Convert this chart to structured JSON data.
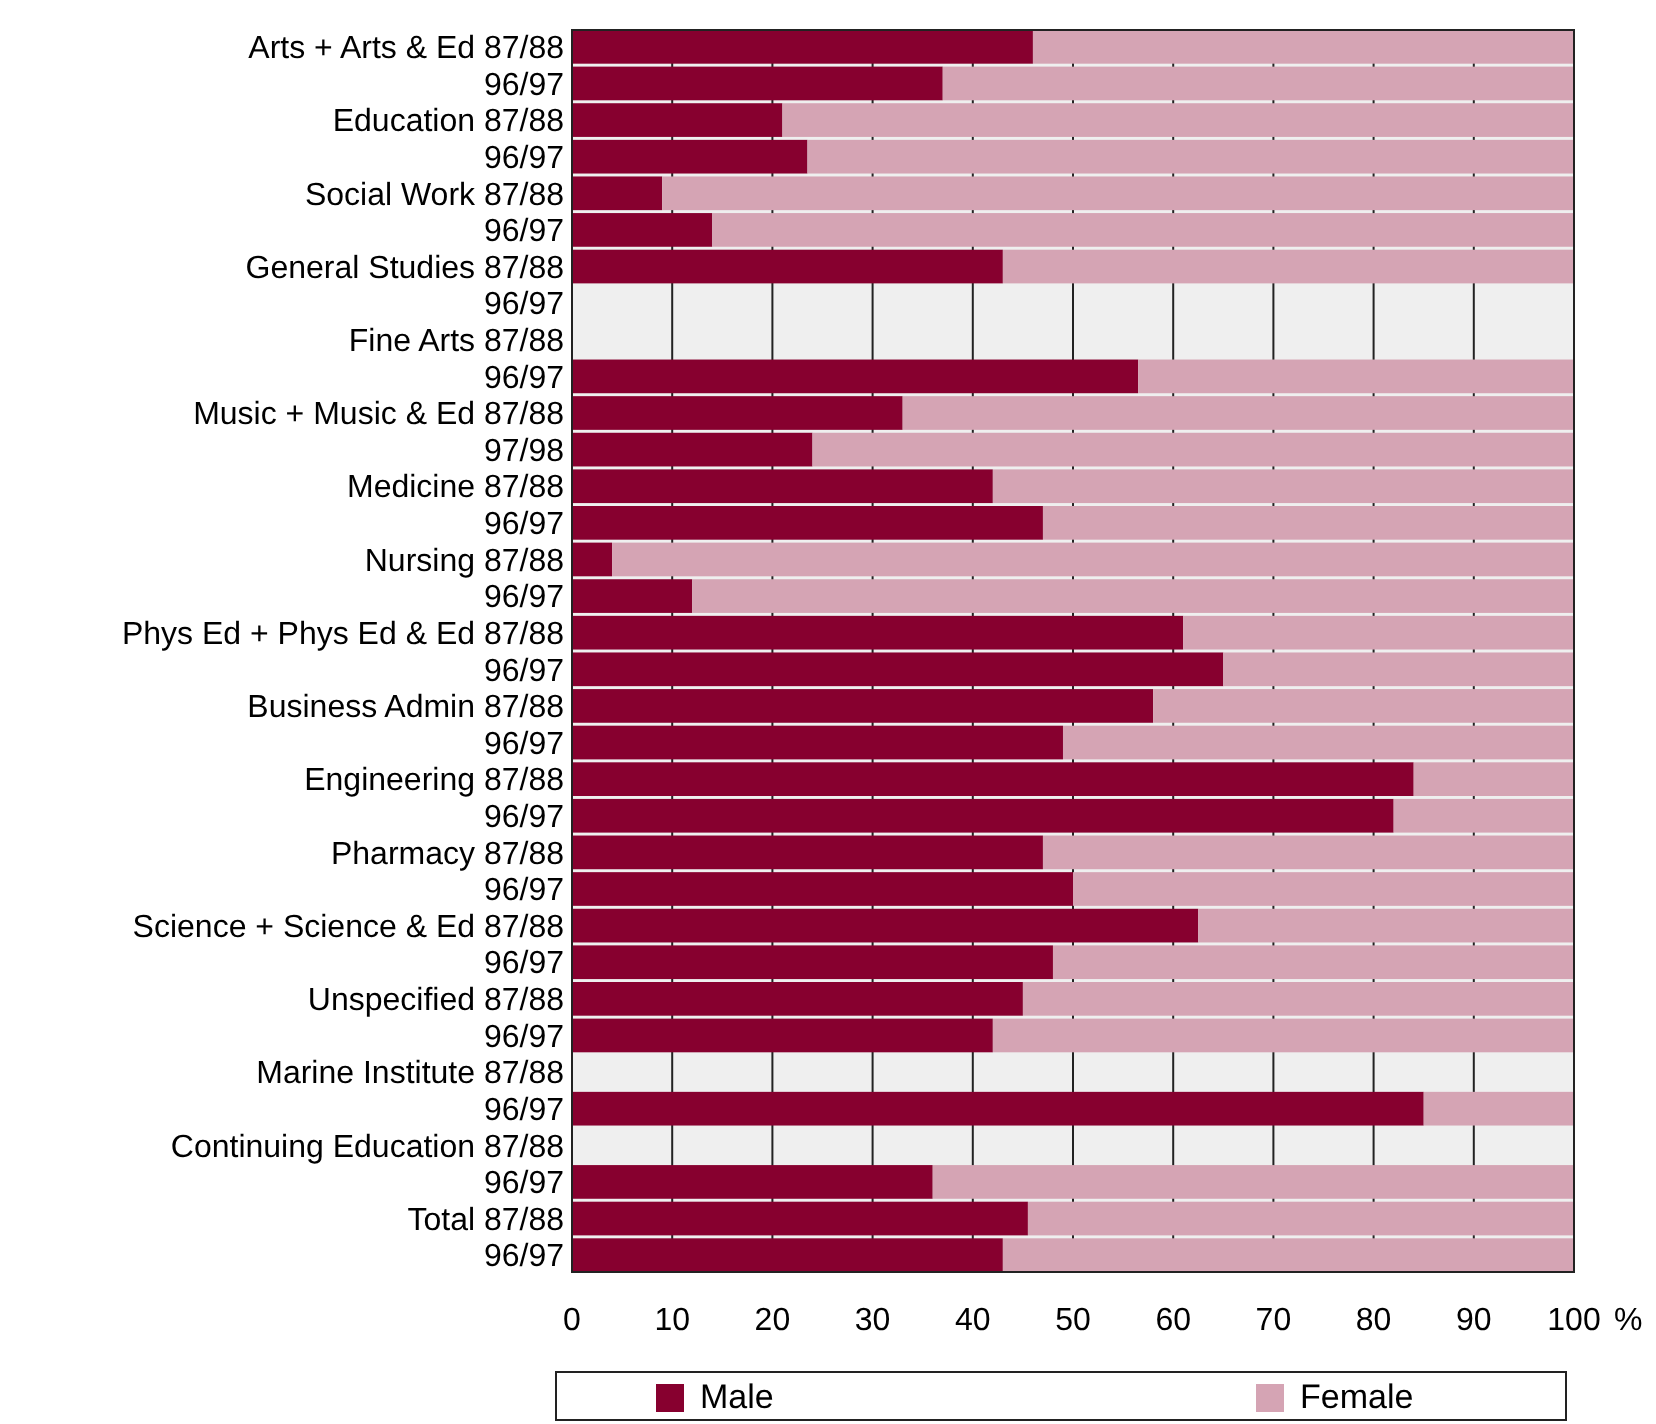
{
  "chart_data": {
    "type": "bar",
    "orientation": "horizontal",
    "stacked": true,
    "categories": [
      "Arts + Arts & Ed 87/88",
      "96/97",
      "Education 87/88",
      "96/97",
      "Social Work 87/88",
      "96/97",
      "General Studies 87/88",
      "96/97",
      "Fine Arts 87/88",
      "96/97",
      "Music + Music & Ed 87/88",
      "97/98",
      "Medicine 87/88",
      "96/97",
      "Nursing 87/88",
      "96/97",
      "Phys Ed + Phys Ed & Ed 87/88",
      "96/97",
      "Business Admin 87/88",
      "96/97",
      "Engineering 87/88",
      "96/97",
      "Pharmacy 87/88",
      "96/97",
      "Science + Science & Ed 87/88",
      "96/97",
      "Unspecified 87/88",
      "96/97",
      "Marine Institute 87/88",
      "96/97",
      "Continuing Education 87/88",
      "96/97",
      "Total 87/88",
      "96/97"
    ],
    "series": [
      {
        "name": "Male",
        "color": "#87002f",
        "values": [
          46,
          37,
          21,
          23.5,
          9,
          14,
          43,
          null,
          null,
          56.5,
          33,
          24,
          42,
          47,
          4,
          12,
          61,
          65,
          58,
          49,
          84,
          82,
          47,
          50,
          62.5,
          48,
          45,
          42,
          null,
          85,
          null,
          36,
          45.5,
          43
        ]
      },
      {
        "name": "Female",
        "color": "#d5a4b4",
        "values": [
          54,
          63,
          79,
          76.5,
          91,
          86,
          57,
          null,
          null,
          43.5,
          67,
          76,
          58,
          53,
          96,
          88,
          39,
          35,
          42,
          51,
          16,
          18,
          53,
          50,
          37.5,
          52,
          55,
          58,
          null,
          15,
          null,
          64,
          54.5,
          57
        ]
      }
    ],
    "xlabel": "%",
    "xlim": [
      0,
      100
    ],
    "xticks": [
      0,
      10,
      20,
      30,
      40,
      50,
      60,
      70,
      80,
      90,
      100
    ],
    "grid": "x",
    "legend": "bottom"
  }
}
